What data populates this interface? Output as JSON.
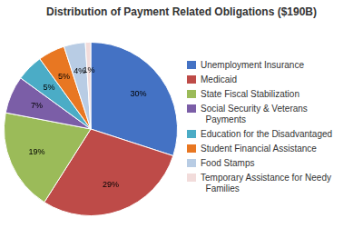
{
  "chart_data": {
    "type": "pie",
    "title": "Distribution of Payment Related Obligations ($190B)",
    "categories": [
      "Unemployment Insurance",
      "Medicaid",
      "State Fiscal Stabilization",
      "Social Security & Veterans\n  Payments",
      "Education for the Disadvantaged",
      "Student Financial Assistance",
      "Food Stamps",
      "Temporary Assistance for Needy\n  Families"
    ],
    "values": [
      30,
      29,
      19,
      7,
      5,
      5,
      4,
      1
    ],
    "value_labels": [
      "30%",
      "29%",
      "19%",
      "7%",
      "5%",
      "5%",
      "4%",
      "1%"
    ],
    "data_labels": true,
    "colors": [
      "#4472C4",
      "#BE4B48",
      "#9BBB59",
      "#7B5EA7",
      "#4BACC6",
      "#E87722",
      "#B8CCE4",
      "#F2DCDB"
    ],
    "legend": "right"
  }
}
